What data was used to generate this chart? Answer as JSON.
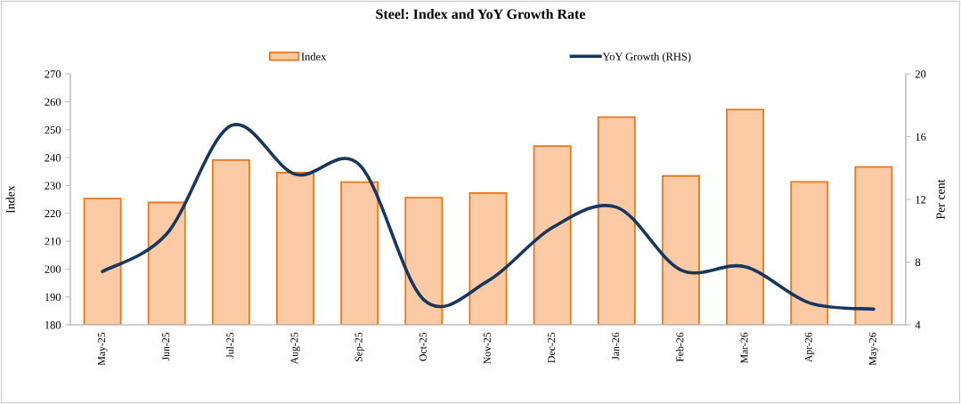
{
  "chart_data": {
    "type": "bar",
    "title": "Steel: Index and YoY Growth Rate",
    "ylabel": "Index",
    "y2label": "Per cent",
    "categories": [
      "May-25",
      "Jun-25",
      "Jul-25",
      "Aug-25",
      "Sep-25",
      "Oct-25",
      "Nov-25",
      "Dec-25",
      "Jan-26",
      "Feb-26",
      "Mar-26",
      "Apr-26",
      "May-26"
    ],
    "series": [
      {
        "name": "Index",
        "color": "#fccaa5",
        "values": [
          225.3,
          223.9,
          239.1,
          234.6,
          231.2,
          225.6,
          227.3,
          244.1,
          254.5,
          233.4,
          257.2,
          231.3,
          236.6
        ]
      },
      {
        "name": "YoY Growth (RHS)",
        "type": "line",
        "axis": "y2",
        "color": "#17375e",
        "values": [
          7.4,
          9.8,
          16.7,
          13.6,
          14.2,
          5.6,
          6.8,
          10.2,
          11.5,
          7.5,
          7.7,
          5.4,
          5.0
        ]
      }
    ],
    "ylim": [
      180,
      270
    ],
    "yticks": [
      180,
      190,
      200,
      210,
      220,
      230,
      240,
      250,
      260,
      270
    ],
    "y2lim": [
      4,
      20
    ],
    "y2ticks": [
      4,
      8,
      12,
      16,
      20
    ],
    "legend": "top",
    "grid": false,
    "marker": "none",
    "line_style": "solid"
  }
}
